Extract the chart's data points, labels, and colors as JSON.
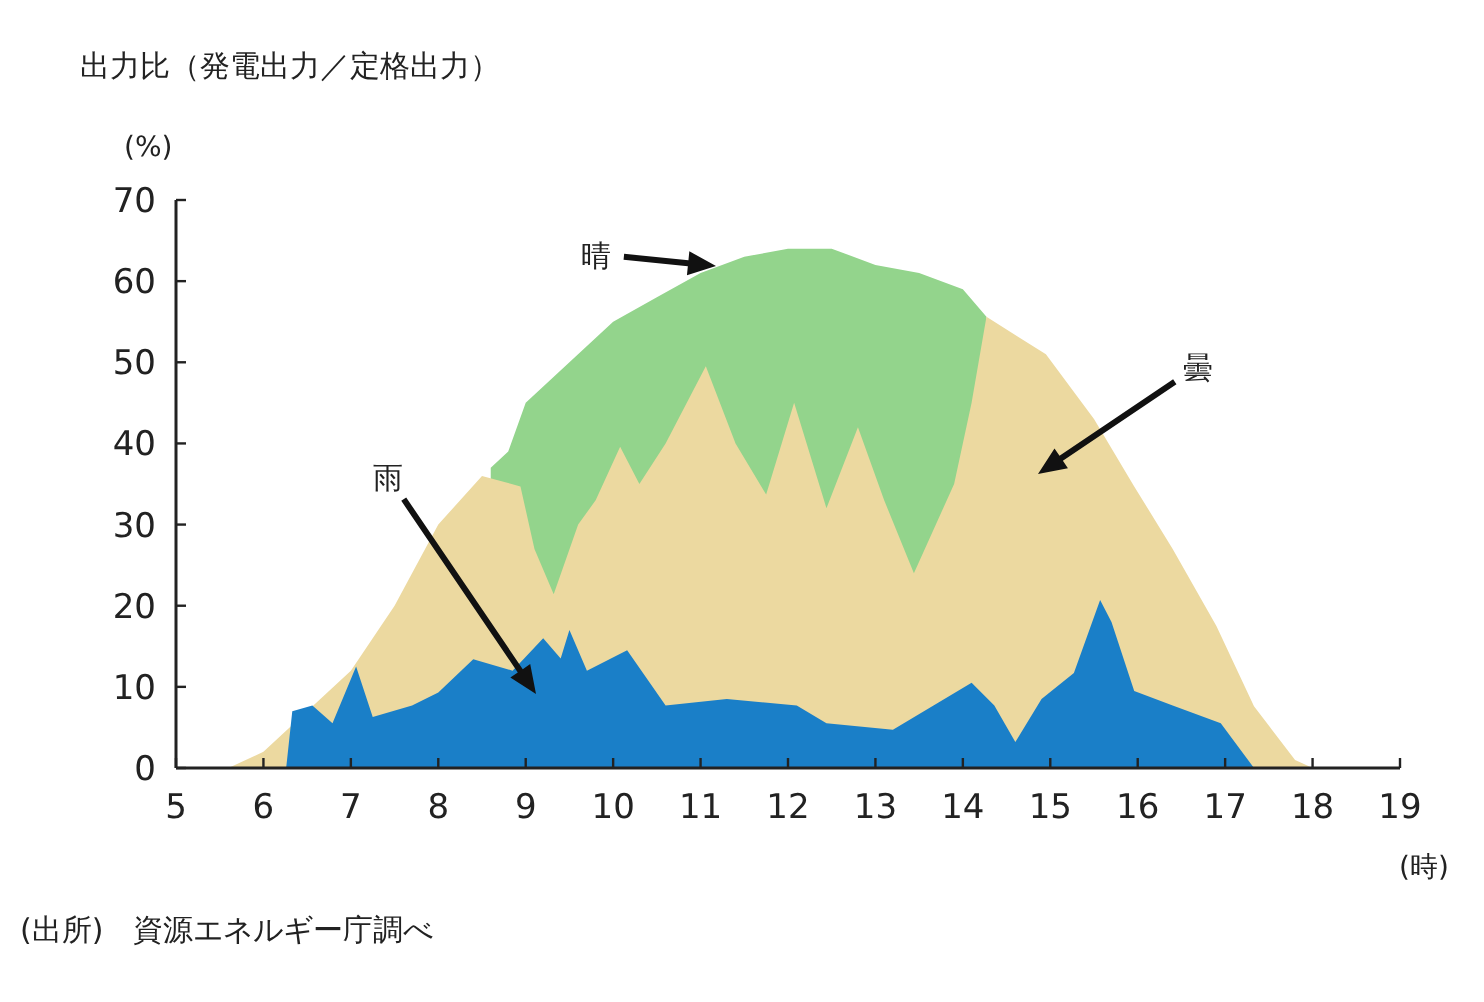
{
  "chart_data": {
    "type": "area",
    "title": "出力比（発電出力／定格出力）",
    "ylabel": "(%)",
    "xlabel": "(時)",
    "xlim": [
      5,
      19
    ],
    "xticks": [
      5,
      6,
      7,
      8,
      9,
      10,
      11,
      12,
      13,
      14,
      15,
      16,
      17,
      18,
      19
    ],
    "ylim": [
      0,
      70
    ],
    "yticks": [
      0,
      10,
      20,
      30,
      40,
      50,
      60,
      70
    ],
    "grid": false,
    "series": [
      {
        "color": "#93d48c",
        "x": [
          8.6,
          8.8,
          9,
          9.5,
          10,
          10.5,
          11,
          11.5,
          12,
          12.5,
          13,
          13.5,
          14,
          14.27
        ],
        "values": [
          37,
          39,
          45,
          50,
          55,
          58,
          61,
          63,
          64,
          64,
          62,
          61,
          59,
          55.6
        ]
      },
      {
        "color": "#ecd9a0",
        "x": [
          5.6,
          6,
          7,
          7.5,
          8,
          8.5,
          8.94,
          9.1,
          9.32,
          9.6,
          9.8,
          10.08,
          10.3,
          10.6,
          11.06,
          11.4,
          11.75,
          12.07,
          12.44,
          12.8,
          13.1,
          13.44,
          13.9,
          14.1,
          14.27,
          14.95,
          15.5,
          15.96,
          16.4,
          16.9,
          17.33,
          17.8,
          18
        ],
        "values": [
          0,
          2,
          12,
          20,
          30,
          36,
          34.7,
          27,
          21.4,
          30,
          33,
          39.6,
          35,
          40,
          49.5,
          40,
          33.7,
          45,
          32,
          42,
          33,
          24,
          35,
          45,
          55.6,
          51,
          43,
          34.7,
          27,
          17.5,
          7.6,
          1,
          0
        ]
      },
      {
        "color": "#1a7fc8",
        "x": [
          6.26,
          6.33,
          6.56,
          6.79,
          7.06,
          7.25,
          7.7,
          8.0,
          8.4,
          8.85,
          9.2,
          9.4,
          9.5,
          9.7,
          10.16,
          10.6,
          11.3,
          12.1,
          12.44,
          13.2,
          14.1,
          14.36,
          14.6,
          14.9,
          15.27,
          15.57,
          15.7,
          15.96,
          16.4,
          16.95,
          17.33
        ],
        "values": [
          0,
          7,
          7.7,
          5.5,
          12.5,
          6.3,
          7.7,
          9.3,
          13.4,
          12,
          16,
          13.5,
          17,
          12,
          14.5,
          7.7,
          8.5,
          7.7,
          5.5,
          4.7,
          10.5,
          7.7,
          3.2,
          8.5,
          11.7,
          20.7,
          18,
          9.5,
          7.7,
          5.5,
          0
        ]
      }
    ],
    "annotations": [
      "晴",
      "曇",
      "雨",
      "(出所)　資源エネルギー庁調べ"
    ]
  }
}
